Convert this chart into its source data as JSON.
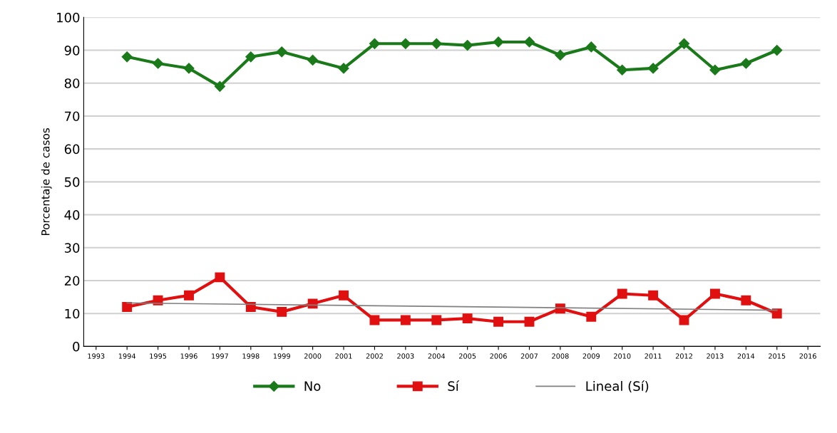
{
  "chart_data": {
    "type": "line",
    "ylabel": "Porcentaje de casos",
    "x": [
      1994,
      1995,
      1996,
      1997,
      1998,
      1999,
      2000,
      2001,
      2002,
      2003,
      2004,
      2005,
      2006,
      2007,
      2008,
      2009,
      2010,
      2011,
      2012,
      2013,
      2014,
      2015
    ],
    "series": [
      {
        "name": "No",
        "color": "#1a7a1a",
        "marker": "diamond",
        "values": [
          88,
          86,
          84.5,
          79,
          88,
          89.5,
          87,
          84.5,
          92,
          92,
          92,
          91.5,
          92.5,
          92.5,
          88.5,
          91,
          84,
          84.5,
          92,
          84,
          86,
          90
        ]
      },
      {
        "name": "Sí",
        "color": "#e01010",
        "marker": "square",
        "values": [
          12,
          14,
          15.5,
          21,
          12,
          10.5,
          13,
          15.5,
          8,
          8,
          8,
          8.5,
          7.5,
          7.5,
          11.5,
          9,
          16,
          15.5,
          8,
          16,
          14,
          10
        ]
      },
      {
        "name": "Lineal (Sí)",
        "color": "#808080",
        "marker": "none",
        "x": [
          1994,
          2015
        ],
        "values": [
          13.2,
          11
        ]
      }
    ],
    "xlim": [
      1992.6,
      2016.4
    ],
    "xticks": [
      1993,
      1994,
      1995,
      1996,
      1997,
      1998,
      1999,
      2000,
      2001,
      2002,
      2003,
      2004,
      2005,
      2006,
      2007,
      2008,
      2009,
      2010,
      2011,
      2012,
      2013,
      2014,
      2015,
      2016
    ],
    "ylim": [
      0,
      100
    ],
    "yticks": [
      0,
      10,
      20,
      30,
      40,
      50,
      60,
      70,
      80,
      90,
      100
    ],
    "grid": "y",
    "legend": "bottom"
  }
}
